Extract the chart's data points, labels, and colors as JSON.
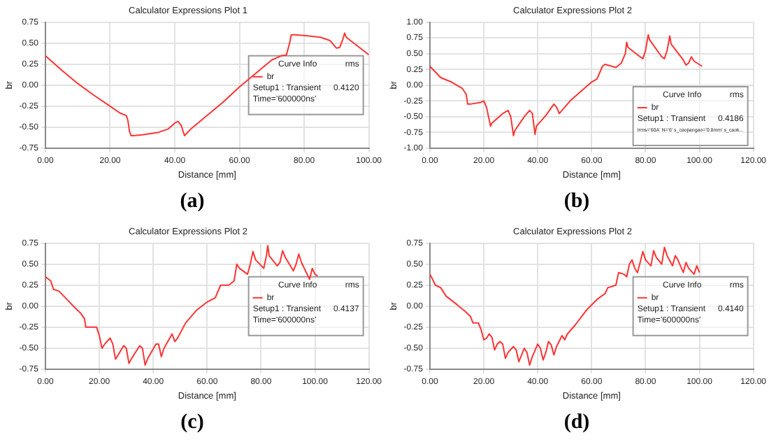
{
  "chart_data": [
    {
      "type": "line",
      "title": "Calculator Expressions Plot 1",
      "xlabel": "Distance [mm]",
      "ylabel": "br",
      "legend": "right",
      "grid": true,
      "marker": "none",
      "line_style": "solid",
      "xlim": [
        0,
        100
      ],
      "xticks": [
        {
          "value": 0,
          "label": "0.00"
        },
        {
          "value": 20,
          "label": "20.00"
        },
        {
          "value": 40,
          "label": "40.00"
        },
        {
          "value": 60,
          "label": "60.00"
        },
        {
          "value": 80,
          "label": "80.00"
        },
        {
          "value": 100,
          "label": "100.00"
        }
      ],
      "ylim": [
        -0.75,
        0.75
      ],
      "yticks": [
        {
          "value": -0.75,
          "label": "-0.75"
        },
        {
          "value": -0.5,
          "label": "-0.50"
        },
        {
          "value": -0.25,
          "label": "-0.25"
        },
        {
          "value": 0,
          "label": "0.00"
        },
        {
          "value": 0.25,
          "label": "0.25"
        },
        {
          "value": 0.5,
          "label": "0.50"
        },
        {
          "value": 0.75,
          "label": "0.75"
        }
      ],
      "annotations": [
        "Curve Info",
        "rms",
        "Setup1 : Transient",
        "0.4120",
        "Time='600000ns'",
        "(a)"
      ],
      "series": [
        {
          "name": "br",
          "color": "#ff3333",
          "x": [
            0,
            5,
            10,
            15,
            20,
            23,
            25,
            25.5,
            26,
            26.5,
            27,
            30,
            35,
            38,
            40,
            41,
            42,
            43,
            43.5,
            45,
            50,
            55,
            60,
            65,
            70,
            73,
            74.5,
            75.5,
            76,
            77,
            80,
            85,
            88,
            90,
            91,
            92,
            92.5,
            93,
            96,
            100
          ],
          "values": [
            0.35,
            0.18,
            0.02,
            -0.12,
            -0.25,
            -0.33,
            -0.36,
            -0.42,
            -0.55,
            -0.6,
            -0.6,
            -0.59,
            -0.56,
            -0.52,
            -0.45,
            -0.43,
            -0.48,
            -0.6,
            -0.58,
            -0.52,
            -0.36,
            -0.2,
            -0.02,
            0.14,
            0.3,
            0.35,
            0.36,
            0.5,
            0.6,
            0.6,
            0.59,
            0.57,
            0.53,
            0.44,
            0.45,
            0.55,
            0.62,
            0.57,
            0.48,
            0.36
          ]
        }
      ]
    },
    {
      "type": "line",
      "title": "Calculator Expressions Plot 2",
      "xlabel": "Distance [mm]",
      "ylabel": "br",
      "legend": "bottom right",
      "grid": true,
      "marker": "none",
      "line_style": "solid",
      "xlim": [
        0,
        120
      ],
      "xticks": [
        {
          "value": 0,
          "label": "0.00"
        },
        {
          "value": 20,
          "label": "20.00"
        },
        {
          "value": 40,
          "label": "40.00"
        },
        {
          "value": 60,
          "label": "60.00"
        },
        {
          "value": 80,
          "label": "80.00"
        },
        {
          "value": 100,
          "label": "100.00"
        },
        {
          "value": 120,
          "label": "120.00"
        }
      ],
      "ylim": [
        -1,
        1
      ],
      "yticks": [
        {
          "value": -1,
          "label": "-1.00"
        },
        {
          "value": -0.75,
          "label": "-0.75"
        },
        {
          "value": -0.5,
          "label": "-0.50"
        },
        {
          "value": -0.25,
          "label": "-0.25"
        },
        {
          "value": 0,
          "label": "0.00"
        },
        {
          "value": 0.25,
          "label": "0.25"
        },
        {
          "value": 0.5,
          "label": "0.50"
        },
        {
          "value": 0.75,
          "label": "0.75"
        },
        {
          "value": 1,
          "label": "1.00"
        }
      ],
      "annotations": [
        "Curve Info",
        "rms",
        "Setup1 : Transient",
        "0.4186",
        "Irms='60A' N='6' s_caojiangao='0.8mm' s_caok...",
        "(b)"
      ],
      "series": [
        {
          "name": "br",
          "color": "#ff3333",
          "x": [
            0,
            4,
            8,
            12,
            13.5,
            14,
            15,
            19,
            20,
            21,
            22,
            22.5,
            23,
            27,
            29,
            30,
            31,
            31.5,
            35,
            37,
            38,
            39,
            39.5,
            43,
            46,
            47,
            48,
            52,
            56,
            60,
            62,
            64,
            65,
            69,
            71,
            72.5,
            73,
            73.5,
            78,
            79,
            80,
            81,
            81.5,
            86,
            87,
            88,
            89,
            89.5,
            94,
            95,
            96,
            97,
            98,
            101
          ],
          "values": [
            0.3,
            0.12,
            0.05,
            -0.05,
            -0.15,
            -0.3,
            -0.3,
            -0.27,
            -0.25,
            -0.35,
            -0.55,
            -0.65,
            -0.6,
            -0.45,
            -0.4,
            -0.5,
            -0.8,
            -0.72,
            -0.5,
            -0.4,
            -0.45,
            -0.78,
            -0.65,
            -0.48,
            -0.3,
            -0.35,
            -0.45,
            -0.25,
            -0.1,
            0.05,
            0.1,
            0.3,
            0.33,
            0.28,
            0.35,
            0.5,
            0.68,
            0.6,
            0.45,
            0.42,
            0.55,
            0.8,
            0.72,
            0.45,
            0.42,
            0.55,
            0.78,
            0.65,
            0.4,
            0.32,
            0.35,
            0.45,
            0.38,
            0.3
          ]
        }
      ]
    },
    {
      "type": "line",
      "title": "Calculator Expressions Plot 2",
      "xlabel": "Distance [mm]",
      "ylabel": "br",
      "legend": "right",
      "grid": true,
      "marker": "none",
      "line_style": "solid",
      "xlim": [
        0,
        120
      ],
      "xticks": [
        {
          "value": 0,
          "label": "0.00"
        },
        {
          "value": 20,
          "label": "20.00"
        },
        {
          "value": 40,
          "label": "40.00"
        },
        {
          "value": 60,
          "label": "60.00"
        },
        {
          "value": 80,
          "label": "80.00"
        },
        {
          "value": 100,
          "label": "100.00"
        },
        {
          "value": 120,
          "label": "120.00"
        }
      ],
      "ylim": [
        -0.75,
        0.75
      ],
      "yticks": [
        {
          "value": -0.75,
          "label": "-0.75"
        },
        {
          "value": -0.5,
          "label": "-0.50"
        },
        {
          "value": -0.25,
          "label": "-0.25"
        },
        {
          "value": 0,
          "label": "0.00"
        },
        {
          "value": 0.25,
          "label": "0.25"
        },
        {
          "value": 0.5,
          "label": "0.50"
        },
        {
          "value": 0.75,
          "label": "0.75"
        }
      ],
      "annotations": [
        "Curve Info",
        "rms",
        "Setup1 : Transient",
        "0.4137",
        "Time='600000ns'",
        "(c)"
      ],
      "series": [
        {
          "name": "br",
          "color": "#ff3333",
          "x": [
            0,
            2,
            3,
            5,
            8,
            11,
            13,
            14.5,
            15,
            19,
            20,
            21,
            22,
            24,
            25,
            26,
            27,
            29,
            30,
            31,
            32,
            35,
            36,
            37,
            38,
            41,
            42,
            43,
            44,
            47,
            48,
            49,
            52,
            56,
            60,
            63,
            65,
            68,
            70,
            71,
            72,
            75,
            76,
            77,
            78,
            81,
            82,
            82.5,
            83,
            86,
            87,
            88,
            89,
            92,
            93,
            94,
            95,
            98,
            99,
            100,
            101
          ],
          "values": [
            0.35,
            0.3,
            0.2,
            0.18,
            0.08,
            -0.02,
            -0.08,
            -0.15,
            -0.25,
            -0.25,
            -0.35,
            -0.5,
            -0.45,
            -0.38,
            -0.45,
            -0.63,
            -0.58,
            -0.47,
            -0.5,
            -0.68,
            -0.62,
            -0.47,
            -0.5,
            -0.7,
            -0.62,
            -0.45,
            -0.45,
            -0.6,
            -0.5,
            -0.33,
            -0.42,
            -0.38,
            -0.2,
            -0.05,
            0.05,
            0.1,
            0.25,
            0.25,
            0.3,
            0.5,
            0.45,
            0.38,
            0.5,
            0.65,
            0.55,
            0.45,
            0.6,
            0.72,
            0.6,
            0.48,
            0.52,
            0.66,
            0.58,
            0.42,
            0.5,
            0.62,
            0.52,
            0.32,
            0.45,
            0.38,
            0.36
          ]
        }
      ]
    },
    {
      "type": "line",
      "title": "Calculator Expressions Plot 2",
      "xlabel": "Distance [mm]",
      "ylabel": "br",
      "legend": "right",
      "grid": true,
      "marker": "none",
      "line_style": "solid",
      "xlim": [
        0,
        120
      ],
      "xticks": [
        {
          "value": 0,
          "label": "0.00"
        },
        {
          "value": 20,
          "label": "20.00"
        },
        {
          "value": 40,
          "label": "40.00"
        },
        {
          "value": 60,
          "label": "60.00"
        },
        {
          "value": 80,
          "label": "80.00"
        },
        {
          "value": 100,
          "label": "100.00"
        },
        {
          "value": 120,
          "label": "120.00"
        }
      ],
      "ylim": [
        -0.75,
        0.75
      ],
      "yticks": [
        {
          "value": -0.75,
          "label": "-0.75"
        },
        {
          "value": -0.5,
          "label": "-0.50"
        },
        {
          "value": -0.25,
          "label": "-0.25"
        },
        {
          "value": 0,
          "label": "0.00"
        },
        {
          "value": 0.25,
          "label": "0.25"
        },
        {
          "value": 0.5,
          "label": "0.50"
        },
        {
          "value": 0.75,
          "label": "0.75"
        }
      ],
      "annotations": [
        "Curve Info",
        "rms",
        "Setup1 : Transient",
        "0.4140",
        "Time='600000ns'",
        "(d)"
      ],
      "series": [
        {
          "name": "br",
          "color": "#ff3333",
          "x": [
            0,
            1,
            2,
            4,
            6,
            10,
            13,
            15,
            16,
            18,
            19,
            20,
            21,
            22,
            23,
            24,
            25,
            26,
            27,
            28,
            29,
            31,
            32,
            33,
            34,
            35,
            36,
            37,
            38,
            40,
            41,
            42,
            43,
            44,
            45,
            46,
            47,
            49,
            50,
            51,
            54,
            58,
            62,
            65,
            66,
            69,
            70,
            72,
            73,
            74,
            75,
            76,
            77,
            78,
            79,
            80,
            82,
            83,
            84,
            86,
            87,
            88,
            90,
            91,
            92,
            94,
            95,
            96,
            98,
            99,
            100
          ],
          "values": [
            0.38,
            0.32,
            0.25,
            0.22,
            0.12,
            0.02,
            -0.06,
            -0.12,
            -0.2,
            -0.2,
            -0.28,
            -0.4,
            -0.38,
            -0.33,
            -0.37,
            -0.52,
            -0.45,
            -0.42,
            -0.45,
            -0.62,
            -0.55,
            -0.48,
            -0.52,
            -0.66,
            -0.58,
            -0.5,
            -0.55,
            -0.7,
            -0.6,
            -0.45,
            -0.5,
            -0.64,
            -0.55,
            -0.42,
            -0.46,
            -0.58,
            -0.48,
            -0.35,
            -0.4,
            -0.33,
            -0.22,
            -0.05,
            0.08,
            0.15,
            0.22,
            0.25,
            0.4,
            0.38,
            0.35,
            0.5,
            0.55,
            0.45,
            0.4,
            0.52,
            0.65,
            0.55,
            0.48,
            0.66,
            0.58,
            0.5,
            0.7,
            0.6,
            0.48,
            0.6,
            0.55,
            0.4,
            0.52,
            0.45,
            0.38,
            0.48,
            0.4
          ]
        }
      ]
    }
  ]
}
